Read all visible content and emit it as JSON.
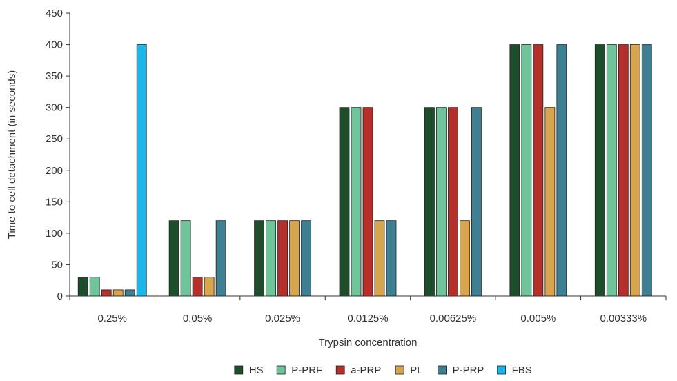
{
  "chart_data": {
    "type": "bar",
    "title": "",
    "xlabel": "Trypsin concentration",
    "ylabel": "Time to cell detachment (in seconds)",
    "ylim": [
      0,
      450
    ],
    "yticks": [
      0,
      50,
      100,
      150,
      200,
      250,
      300,
      350,
      400,
      450
    ],
    "grid": false,
    "legend_position": "bottom",
    "categories": [
      "0.25%",
      "0.05%",
      "0.025%",
      "0.0125%",
      "0.00625%",
      "0.005%",
      "0.00333%"
    ],
    "series": [
      {
        "name": "HS",
        "color": "#1e4d2b",
        "values": [
          30,
          120,
          120,
          300,
          300,
          400,
          400
        ]
      },
      {
        "name": "P-PRF",
        "color": "#6fc49a",
        "values": [
          30,
          120,
          120,
          300,
          300,
          400,
          400
        ]
      },
      {
        "name": "a-PRP",
        "color": "#b5302a",
        "values": [
          10,
          30,
          120,
          300,
          300,
          400,
          400
        ]
      },
      {
        "name": "PL",
        "color": "#d8a54f",
        "values": [
          10,
          30,
          120,
          120,
          120,
          300,
          400
        ]
      },
      {
        "name": "P-PRP",
        "color": "#3e7f92",
        "values": [
          10,
          120,
          120,
          120,
          300,
          400,
          400
        ]
      },
      {
        "name": "FBS",
        "color": "#1ab8ea",
        "values": [
          400,
          null,
          null,
          null,
          null,
          null,
          null
        ]
      }
    ]
  }
}
